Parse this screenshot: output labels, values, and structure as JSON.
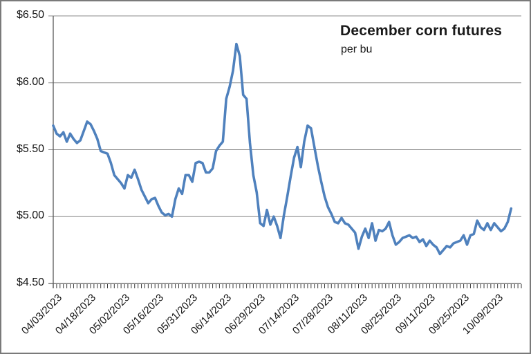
{
  "figure": {
    "title": "December corn futures",
    "subtitle": "per bu"
  },
  "chart_data": {
    "type": "line",
    "title": "December corn futures",
    "subtitle": "per bu",
    "series_name": "December corn futures price",
    "unit": "dollars per bushel",
    "line_color": "#4F81BD",
    "grid_color": "#8a8a8a",
    "axis_color": "#595959",
    "tick_comb_color": "#3a3a3a",
    "text_color": "#141414",
    "legend": "none",
    "grid": "horizontal-only",
    "y_axis": {
      "min": 4.5,
      "max": 6.5,
      "step": 0.5,
      "ticks": [
        6.5,
        6.0,
        5.5,
        5.0,
        4.5
      ],
      "tick_labels": [
        "$6.50",
        "$6.00",
        "$5.50",
        "$5.00",
        "$4.50"
      ]
    },
    "x_axis": {
      "tick_labels": [
        "04/03/2023",
        "04/18/2023",
        "05/02/2023",
        "05/16/2023",
        "05/31/2023",
        "06/14/2023",
        "06/29/2023",
        "07/14/2023",
        "07/28/2023",
        "08/11/2023",
        "08/25/2023",
        "09/11/2023",
        "09/25/2023",
        "10/09/2023"
      ],
      "tick_indices": [
        0,
        10,
        20,
        30,
        40,
        50,
        60,
        70,
        80,
        90,
        100,
        110,
        120,
        130
      ],
      "minor_tick_every_point": true,
      "total_slots": 138
    },
    "values": [
      5.68,
      5.62,
      5.6,
      5.63,
      5.56,
      5.62,
      5.58,
      5.55,
      5.57,
      5.64,
      5.71,
      5.69,
      5.64,
      5.58,
      5.49,
      5.48,
      5.47,
      5.4,
      5.31,
      5.28,
      5.25,
      5.21,
      5.31,
      5.29,
      5.35,
      5.28,
      5.2,
      5.15,
      5.1,
      5.13,
      5.14,
      5.08,
      5.03,
      5.01,
      5.02,
      5.0,
      5.13,
      5.21,
      5.17,
      5.31,
      5.31,
      5.26,
      5.4,
      5.41,
      5.4,
      5.33,
      5.33,
      5.36,
      5.49,
      5.53,
      5.56,
      5.88,
      5.97,
      6.09,
      6.29,
      6.2,
      5.91,
      5.88,
      5.55,
      5.31,
      5.18,
      4.95,
      4.93,
      5.05,
      4.94,
      5.0,
      4.93,
      4.84,
      5.01,
      5.15,
      5.3,
      5.44,
      5.52,
      5.37,
      5.56,
      5.68,
      5.66,
      5.52,
      5.38,
      5.26,
      5.15,
      5.07,
      5.02,
      4.96,
      4.95,
      4.99,
      4.95,
      4.94,
      4.91,
      4.88,
      4.76,
      4.85,
      4.91,
      4.84,
      4.95,
      4.82,
      4.9,
      4.89,
      4.91,
      4.96,
      4.86,
      4.79,
      4.81,
      4.84,
      4.85,
      4.86,
      4.84,
      4.85,
      4.81,
      4.83,
      4.78,
      4.82,
      4.79,
      4.77,
      4.72,
      4.75,
      4.78,
      4.77,
      4.8,
      4.81,
      4.82,
      4.86,
      4.79,
      4.86,
      4.87,
      4.97,
      4.92,
      4.9,
      4.95,
      4.9,
      4.95,
      4.92,
      4.89,
      4.91,
      4.96,
      5.06
    ]
  }
}
